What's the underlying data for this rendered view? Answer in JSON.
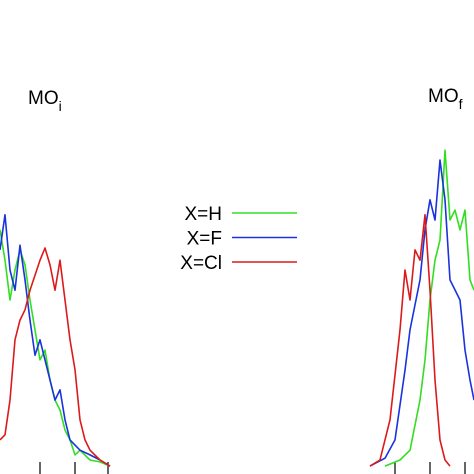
{
  "chart_data": {
    "type": "line",
    "annotations": [
      {
        "text": "MO",
        "sub": "i"
      },
      {
        "text": "MO",
        "sub": "f"
      }
    ],
    "xlim": [
      0,
      474
    ],
    "ylim": [
      0,
      100
    ],
    "legend": "center",
    "series": [
      {
        "name": "X=H",
        "color": "#33dd22",
        "x": [
          0,
          5,
          10,
          15,
          20,
          25,
          30,
          35,
          40,
          45,
          50,
          55,
          60,
          65,
          70,
          75,
          80,
          90,
          100,
          110,
          240,
          385,
          400,
          410,
          420,
          425,
          430,
          435,
          440,
          445,
          450,
          455,
          460,
          465,
          470,
          474
        ],
        "values": [
          50.9,
          44.4,
          35.9,
          42.3,
          46.6,
          43.4,
          35.9,
          29.5,
          23.1,
          25.2,
          18.8,
          14.5,
          12.4,
          8.1,
          6.0,
          2.8,
          3.8,
          1.7,
          1.3,
          0.4,
          null,
          0.4,
          1.7,
          3.8,
          14.5,
          23.1,
          35.9,
          44.4,
          48.7,
          67.9,
          53.0,
          55.1,
          50.9,
          55.1,
          40.2,
          38.0
        ]
      },
      {
        "name": "X=F",
        "color": "#1a33dd",
        "x": [
          0,
          5,
          10,
          15,
          20,
          25,
          30,
          35,
          40,
          45,
          50,
          55,
          60,
          65,
          70,
          80,
          90,
          100,
          110,
          240,
          370,
          385,
          395,
          405,
          410,
          420,
          425,
          430,
          435,
          440,
          445,
          450,
          460,
          465,
          470,
          474
        ],
        "values": [
          46.6,
          54.1,
          42.3,
          38.0,
          47.6,
          40.2,
          31.6,
          24.1,
          27.4,
          23.1,
          18.8,
          14.5,
          16.7,
          10.3,
          6.0,
          3.8,
          2.8,
          1.7,
          0.4,
          null,
          0.4,
          2.1,
          6.0,
          20.9,
          29.5,
          40.2,
          50.9,
          57.3,
          53.0,
          65.8,
          57.3,
          40.2,
          35.9,
          25.2,
          18.8,
          14.5
        ]
      },
      {
        "name": "X=Cl",
        "color": "#dd1a1a",
        "x": [
          0,
          5,
          10,
          15,
          20,
          25,
          30,
          35,
          40,
          45,
          50,
          55,
          60,
          65,
          70,
          75,
          80,
          85,
          90,
          100,
          110,
          240,
          370,
          380,
          390,
          400,
          405,
          410,
          415,
          420,
          425,
          430,
          435,
          440,
          445,
          450
        ],
        "values": [
          6.0,
          7.1,
          14.5,
          27.4,
          31.6,
          33.8,
          38.0,
          41.2,
          44.4,
          47.0,
          43.4,
          38.0,
          44.4,
          35.9,
          27.4,
          21.0,
          10.3,
          6.0,
          3.8,
          1.7,
          0.4,
          null,
          0.4,
          1.7,
          10.3,
          29.5,
          42.3,
          35.9,
          46.6,
          44.4,
          54.1,
          38.0,
          18.8,
          6.0,
          1.7,
          0.4
        ]
      }
    ]
  }
}
